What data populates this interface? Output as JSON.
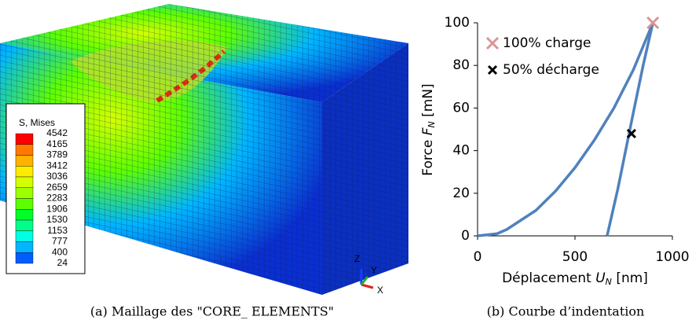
{
  "figure_a": {
    "caption": "(a)  Maillage des \"CORE_ ELEMENTS\"",
    "legend": {
      "title": "S, Mises",
      "values": [
        4542,
        4165,
        3789,
        3412,
        3036,
        2659,
        2283,
        1906,
        1530,
        1153,
        777,
        400,
        24
      ],
      "colors": [
        "#ff0000",
        "#ff7a00",
        "#ffb300",
        "#ffeb00",
        "#d5ff00",
        "#9dff00",
        "#5dff00",
        "#00ff2a",
        "#00ff8a",
        "#00ffe4",
        "#00b6ff",
        "#005eff"
      ]
    },
    "triad": {
      "z": "Z",
      "y": "Y",
      "x": "X"
    }
  },
  "figure_b": {
    "caption": "(b)  Courbe d’indentation"
  },
  "chart_data": {
    "type": "line",
    "xlabel": {
      "text": "Déplacement",
      "symbol": "U",
      "subscript": "N",
      "unit": "[nm]"
    },
    "ylabel": {
      "text": "Force",
      "symbol": "F",
      "subscript": "N",
      "unit": "[mN]"
    },
    "xlim": [
      0,
      1000
    ],
    "ylim": [
      0,
      100
    ],
    "xticks": [
      0,
      500,
      1000
    ],
    "yticks": [
      0,
      20,
      40,
      60,
      80,
      100
    ],
    "grid": false,
    "legend": "upper left",
    "series": [
      {
        "color": "#4f81bd",
        "x": [
          0,
          100,
          150,
          200,
          300,
          400,
          500,
          600,
          700,
          800,
          900
        ],
        "values": [
          0,
          1,
          3,
          6,
          12,
          21,
          32,
          45,
          60,
          78,
          100
        ]
      },
      {
        "color": "#4f81bd",
        "x": [
          900,
          850,
          800,
          760,
          720,
          690,
          665
        ],
        "values": [
          100,
          80,
          58,
          40,
          22,
          10,
          0
        ]
      },
      {
        "name": "100% charge",
        "color": "#d99594",
        "marker": "x",
        "x": [
          900
        ],
        "values": [
          100
        ]
      },
      {
        "name": "50% décharge",
        "color": "#000000",
        "marker": "x",
        "x": [
          790
        ],
        "values": [
          48
        ]
      }
    ]
  }
}
